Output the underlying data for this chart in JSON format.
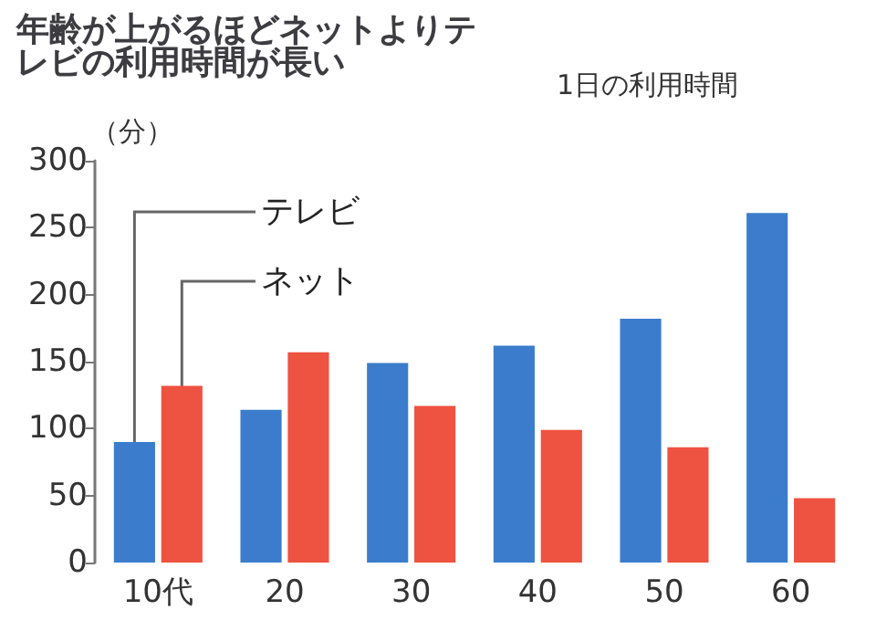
{
  "chart_data": {
    "type": "bar",
    "title": "年齢が上がるほどネットよりテレビの利用時間が長い",
    "subtitle": "1日の利用時間",
    "ylabel": "（分）",
    "categories": [
      "10代",
      "20",
      "30",
      "40",
      "50",
      "60"
    ],
    "series": [
      {
        "name": "テレビ",
        "color": "#3b7dcc",
        "values": [
          90,
          114,
          149,
          162,
          182,
          261
        ]
      },
      {
        "name": "ネット",
        "color": "#ee5240",
        "values": [
          132,
          157,
          117,
          99,
          86,
          48
        ]
      }
    ],
    "ylim": [
      0,
      300
    ],
    "yticks": [
      0,
      50,
      100,
      150,
      200,
      250,
      300
    ],
    "grid": false,
    "legend": false
  }
}
